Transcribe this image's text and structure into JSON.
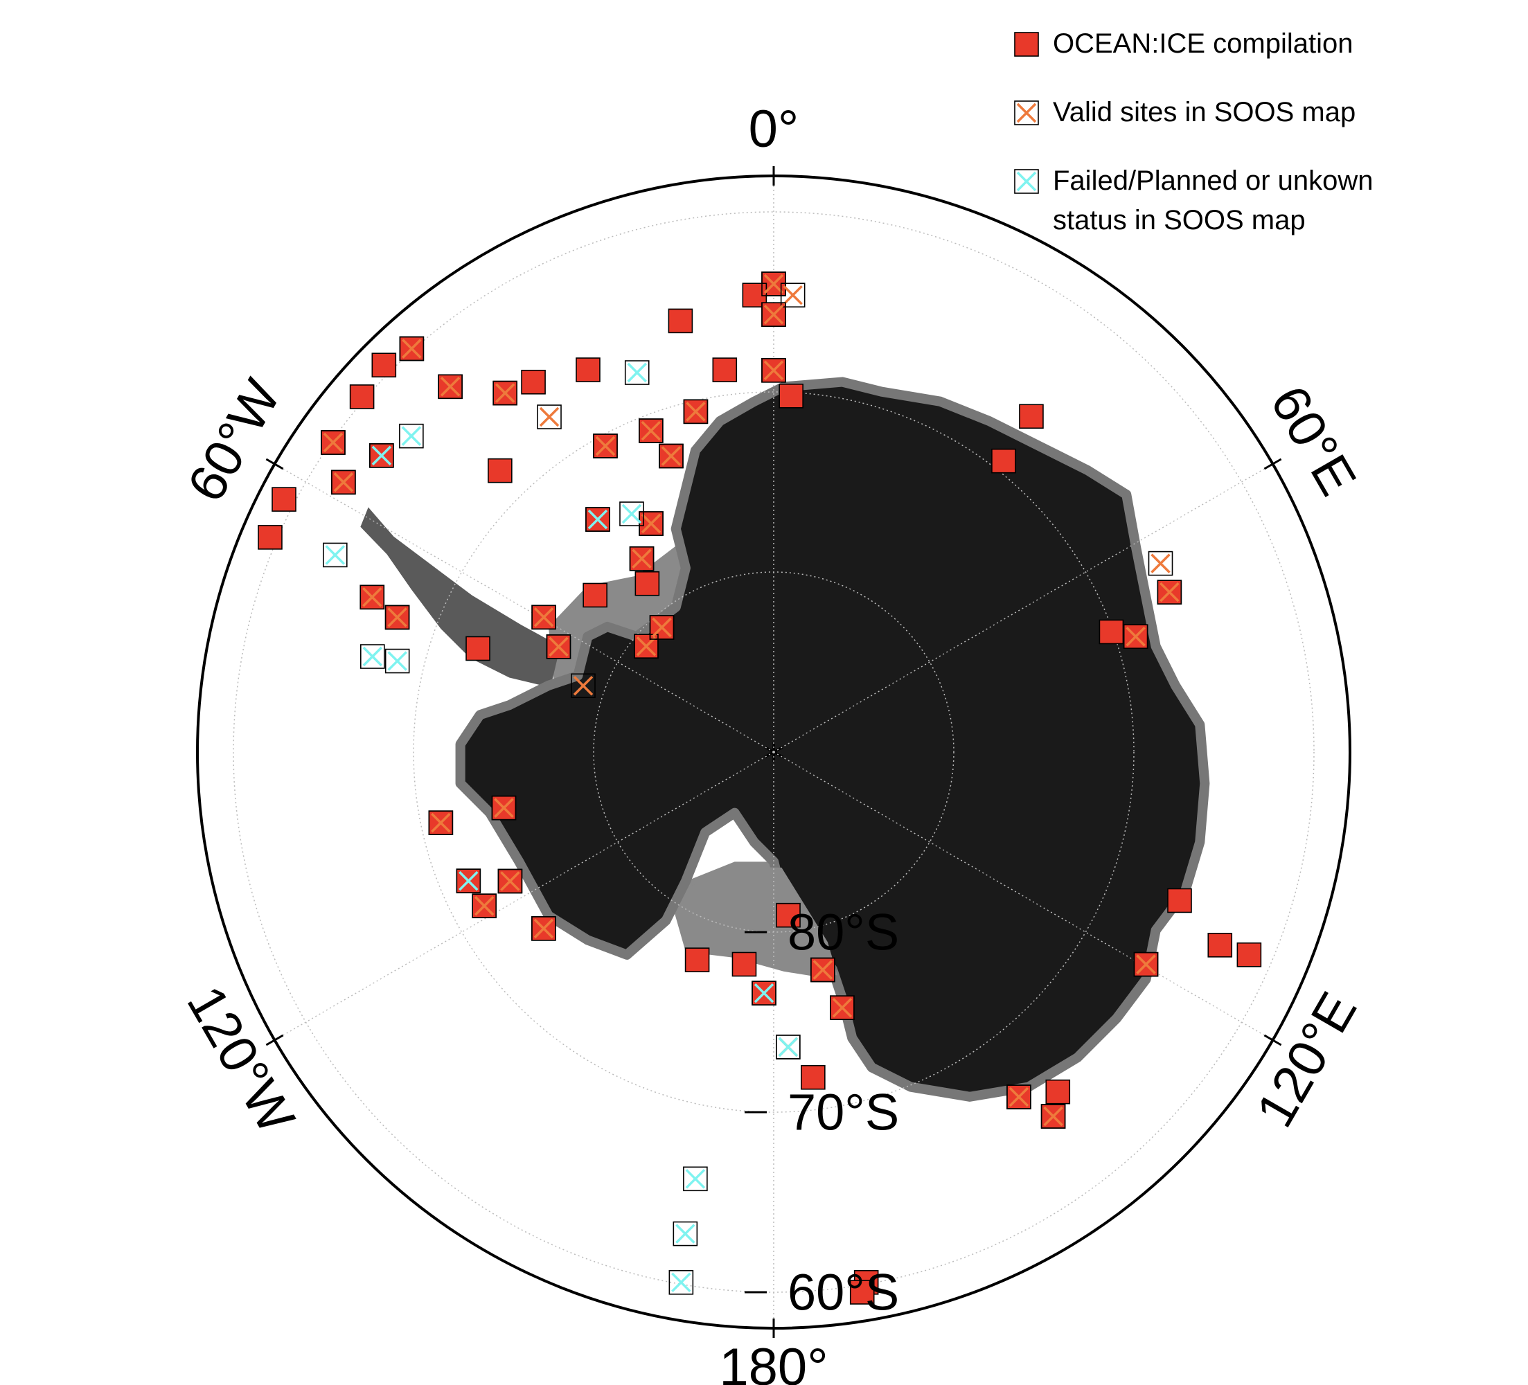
{
  "map": {
    "type": "polar-map",
    "boundary_lat": -58,
    "lat_ticks": [
      {
        "value": -60,
        "label": "60°S"
      },
      {
        "value": -70,
        "label": "70°S"
      },
      {
        "value": -80,
        "label": "80°S"
      }
    ],
    "lon_ticks": [
      {
        "value": 0,
        "label": "0°"
      },
      {
        "value": 60,
        "label": "60°E"
      },
      {
        "value": 120,
        "label": "120°E"
      },
      {
        "value": 180,
        "label": "180°"
      },
      {
        "value": -120,
        "label": "120°W"
      },
      {
        "value": -60,
        "label": "60°W"
      }
    ],
    "grid": true,
    "series": [
      {
        "name": "OCEAN:ICE compilation",
        "color": "#e8392a",
        "marker": "square",
        "points": [
          [
            -64,
            0
          ],
          [
            -64.6,
            -2.4
          ],
          [
            -65.7,
            0
          ],
          [
            -65.5,
            -12.2
          ],
          [
            -68.8,
            0
          ],
          [
            -70.2,
            2.8
          ],
          [
            -66.5,
            37.5
          ],
          [
            -69.4,
            38.3
          ],
          [
            -66.3,
            68
          ],
          [
            -68.9,
            72.3
          ],
          [
            -70.1,
            70.4
          ],
          [
            -66,
            110.1
          ],
          [
            -63,
            113.4
          ],
          [
            -61.3,
            113.1
          ],
          [
            -66.2,
            119.7
          ],
          [
            -65.4,
            140.1
          ],
          [
            -66.5,
            144.6
          ],
          [
            -64.5,
            142.5
          ],
          [
            -60.1,
            170.1
          ],
          [
            -59.6,
            170.7
          ],
          [
            -71.8,
            173.1
          ],
          [
            -76.6,
            -177.7
          ],
          [
            -75.3,
            165
          ],
          [
            -77.6,
            167.3
          ],
          [
            -80.9,
            174.9
          ],
          [
            -78.1,
            -172.1
          ],
          [
            -77.7,
            -159.8
          ],
          [
            -73.9,
            -127.5
          ],
          [
            -73.7,
            -116.1
          ],
          [
            -71.6,
            -112.9
          ],
          [
            -71.8,
            -118
          ],
          [
            -71.1,
            -102
          ],
          [
            -74.7,
            -101.7
          ],
          [
            -72.6,
            -70.7
          ],
          [
            -66.1,
            -68.9
          ],
          [
            -67.8,
            -70.3
          ],
          [
            -59.6,
            -66.9
          ],
          [
            -59.4,
            -62.7
          ],
          [
            -61.8,
            -57.9
          ],
          [
            -60.1,
            -54.9
          ],
          [
            -62.7,
            -52.9
          ],
          [
            -59.8,
            -49.2
          ],
          [
            -59.5,
            -45.2
          ],
          [
            -59.9,
            -41.9
          ],
          [
            -62.9,
            -41.5
          ],
          [
            -65.1,
            -36.8
          ],
          [
            -65.5,
            -33
          ],
          [
            -66.4,
            -25.9
          ],
          [
            -68.2,
            -44.2
          ],
          [
            -70.6,
            -28.8
          ],
          [
            -70.9,
            -20.9
          ],
          [
            -72.6,
            -19.1
          ],
          [
            -70.6,
            -12.9
          ],
          [
            -68.6,
            -7.3
          ],
          [
            -73.8,
            -37.1
          ],
          [
            -75.6,
            -28.2
          ],
          [
            -77,
            -34.3
          ],
          [
            -76.8,
            -48.7
          ],
          [
            -78.3,
            -36.9
          ],
          [
            -75.2,
            -59.6
          ],
          [
            -76.7,
            -63.9
          ],
          [
            -80.8,
            -50.3
          ],
          [
            -80.7,
            -41.9
          ]
        ]
      },
      {
        "name": "Valid sites in SOOS map",
        "color": "#ee7a3c",
        "marker": "cross-box",
        "points": [
          [
            -64,
            0
          ],
          [
            -64.6,
            2.4
          ],
          [
            -65.7,
            0
          ],
          [
            -68.8,
            0
          ],
          [
            -66.1,
            64
          ],
          [
            -66.3,
            68
          ],
          [
            -68.9,
            72.3
          ],
          [
            -66.2,
            119.7
          ],
          [
            -66.5,
            144.6
          ],
          [
            -64.5,
            142.5
          ],
          [
            -73.6,
            177.2
          ],
          [
            -75.3,
            165
          ],
          [
            -77.6,
            167.3
          ],
          [
            -73.9,
            -127.5
          ],
          [
            -73.7,
            -116.1
          ],
          [
            -71.8,
            -118
          ],
          [
            -71.1,
            -102
          ],
          [
            -74.7,
            -101.7
          ],
          [
            -66.1,
            -68.9
          ],
          [
            -67.8,
            -70.3
          ],
          [
            -61.8,
            -57.9
          ],
          [
            -60.1,
            -54.9
          ],
          [
            -59.9,
            -41.9
          ],
          [
            -62.9,
            -41.5
          ],
          [
            -65.1,
            -36.8
          ],
          [
            -67.6,
            -33.8
          ],
          [
            -70.6,
            -28.8
          ],
          [
            -70.9,
            -20.9
          ],
          [
            -72.6,
            -19.1
          ],
          [
            -70.6,
            -12.9
          ],
          [
            -75.6,
            -28.2
          ],
          [
            -77,
            -34.3
          ],
          [
            -75.2,
            -59.6
          ],
          [
            -76.7,
            -63.9
          ],
          [
            -78.8,
            -70.8
          ],
          [
            -80.8,
            -50.3
          ],
          [
            -80.7,
            -41.9
          ]
        ]
      },
      {
        "name": "Failed/Planned or unkown status in SOOS map",
        "color": "#7ff3f0",
        "marker": "cross-box",
        "points": [
          [
            -60.1,
            -170.1
          ],
          [
            -62.8,
            -169.6
          ],
          [
            -65.9,
            -169.6
          ],
          [
            -73.6,
            177.2
          ],
          [
            -76.6,
            -177.7
          ],
          [
            -71.6,
            -112.9
          ],
          [
            -68.5,
            -76.4
          ],
          [
            -67.1,
            -76.6
          ],
          [
            -63.3,
            -65.8
          ],
          [
            -62.7,
            -52.9
          ],
          [
            -63.3,
            -48.9
          ],
          [
            -67.6,
            -19.8
          ],
          [
            -74.6,
            -30.8
          ],
          [
            -73.8,
            -37.1
          ]
        ]
      }
    ]
  }
}
